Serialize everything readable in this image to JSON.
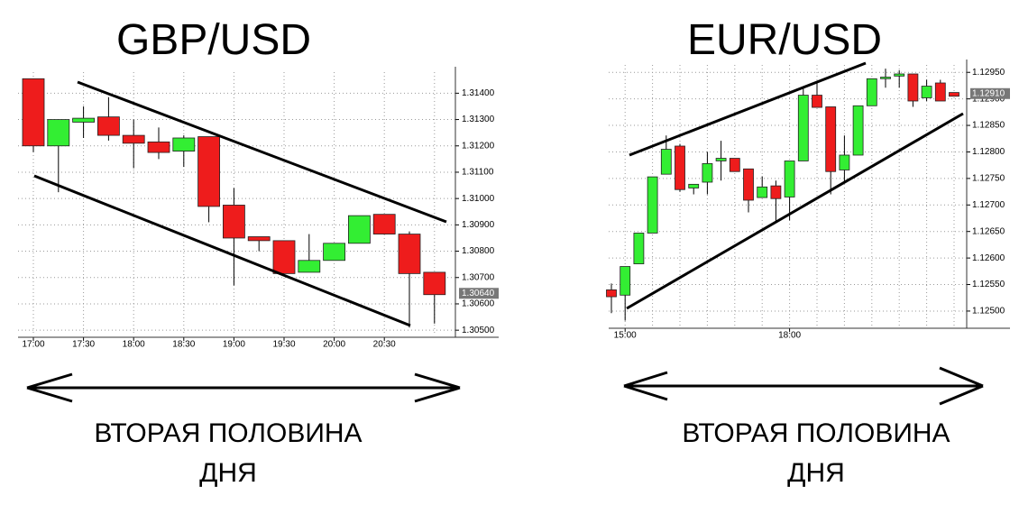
{
  "chart_data": [
    {
      "type": "candlestick",
      "title": "GBP/USD",
      "caption": [
        "ВТОРАЯ ПОЛОВИНА",
        "ДНЯ"
      ],
      "categories": [
        "17:00",
        null,
        "17:30",
        null,
        "18:00",
        null,
        "18:30",
        null,
        "19:00",
        null,
        "19:30",
        null,
        "20:00",
        null,
        "20:30",
        null,
        null
      ],
      "open": [
        1.31455,
        1.312,
        1.3129,
        1.3131,
        1.3124,
        1.31215,
        1.3118,
        1.31235,
        1.30975,
        1.30855,
        1.3084,
        1.3072,
        1.30765,
        1.3083,
        1.3094,
        1.30865,
        1.3072
      ],
      "high": [
        1.31455,
        1.313,
        1.3135,
        1.31385,
        1.313,
        1.3127,
        1.3124,
        1.31235,
        1.3104,
        1.30855,
        1.3084,
        1.30865,
        1.3083,
        1.30935,
        1.3094,
        1.30875,
        1.3072
      ],
      "low": [
        1.31176,
        1.31024,
        1.3123,
        1.3122,
        1.31115,
        1.3115,
        1.3112,
        1.3091,
        1.3067,
        1.308,
        1.30715,
        1.3072,
        1.30765,
        1.3083,
        1.30865,
        1.3051,
        1.30525
      ],
      "close": [
        1.312,
        1.313,
        1.31305,
        1.3124,
        1.3121,
        1.31175,
        1.3123,
        1.3097,
        1.3085,
        1.3084,
        1.30715,
        1.30765,
        1.3083,
        1.30935,
        1.30865,
        1.30715,
        1.30635
      ],
      "colors": {
        "up": "#33ee33",
        "down": "#ee1c1c"
      },
      "ylim": [
        1.3048,
        1.3148
      ],
      "yticks": [
        {
          "value": 1.314,
          "label": "1.31400"
        },
        {
          "value": 1.313,
          "label": "1.31300"
        },
        {
          "value": 1.312,
          "label": "1.31200"
        },
        {
          "value": 1.311,
          "label": "1.31100"
        },
        {
          "value": 1.31,
          "label": "1.31000"
        },
        {
          "value": 1.309,
          "label": "1.30900"
        },
        {
          "value": 1.308,
          "label": "1.30800"
        },
        {
          "value": 1.307,
          "label": "1.30700"
        },
        {
          "value": 1.306,
          "label": "1.30600"
        },
        {
          "value": 1.305,
          "label": "1.30500"
        }
      ],
      "last_price": {
        "value": 1.3064,
        "label": "1.30640"
      },
      "grid": true
    },
    {
      "type": "candlestick",
      "title": "EUR/USD",
      "caption": [
        "ВТОРАЯ ПОЛОВИНА",
        "ДНЯ"
      ],
      "categories": [
        null,
        "15:00",
        null,
        null,
        null,
        null,
        null,
        null,
        null,
        null,
        null,
        null,
        null,
        "18:00",
        null,
        null,
        null,
        null,
        null,
        null,
        null,
        null,
        null,
        null,
        null,
        null
      ],
      "open": [
        1.1254,
        1.1253,
        1.12589,
        1.12647,
        1.12758,
        1.12811,
        1.12732,
        1.12743,
        1.12783,
        1.12788,
        1.12768,
        1.12714,
        1.12736,
        1.12715,
        1.12783,
        1.12907,
        1.12885,
        1.12766,
        1.12794,
        1.12887,
        1.12938,
        1.12943,
        1.12947,
        1.12902,
        1.1293,
        1.12912
      ],
      "high": [
        1.12552,
        1.12584,
        1.12647,
        1.12753,
        1.12831,
        1.12815,
        1.12739,
        1.128,
        1.12821,
        1.12788,
        1.12768,
        1.12754,
        1.12746,
        1.12783,
        1.12919,
        1.12933,
        1.12885,
        1.12831,
        1.12887,
        1.12938,
        1.12957,
        1.12954,
        1.12947,
        1.12936,
        1.12936,
        1.12912
      ],
      "low": [
        1.12496,
        1.12482,
        1.12589,
        1.12647,
        1.12758,
        1.12725,
        1.1272,
        1.1272,
        1.12746,
        1.12763,
        1.12686,
        1.12714,
        1.12669,
        1.12671,
        1.12783,
        1.12884,
        1.1272,
        1.12743,
        1.12794,
        1.12887,
        1.12921,
        1.12921,
        1.12885,
        1.12896,
        1.12896,
        1.12905
      ],
      "close": [
        1.12527,
        1.12584,
        1.12647,
        1.12753,
        1.12805,
        1.12729,
        1.12739,
        1.12778,
        1.12788,
        1.12763,
        1.12709,
        1.12734,
        1.12712,
        1.12783,
        1.12907,
        1.12884,
        1.12763,
        1.12794,
        1.12887,
        1.12938,
        1.12941,
        1.12947,
        1.12896,
        1.12924,
        1.12896,
        1.12905
      ],
      "colors": {
        "up": "#33ee33",
        "down": "#ee1c1c"
      },
      "ylim": [
        1.12471,
        1.12964
      ],
      "yticks": [
        {
          "value": 1.1295,
          "label": "1.12950"
        },
        {
          "value": 1.129,
          "label": "1.12900"
        },
        {
          "value": 1.1285,
          "label": "1.12850"
        },
        {
          "value": 1.128,
          "label": "1.12800"
        },
        {
          "value": 1.1275,
          "label": "1.12750"
        },
        {
          "value": 1.127,
          "label": "1.12700"
        },
        {
          "value": 1.1265,
          "label": "1.12650"
        },
        {
          "value": 1.126,
          "label": "1.12600"
        },
        {
          "value": 1.1255,
          "label": "1.12550"
        },
        {
          "value": 1.125,
          "label": "1.12500"
        }
      ],
      "last_price": {
        "value": 1.1291,
        "label": "1.12910"
      },
      "grid": true
    }
  ]
}
